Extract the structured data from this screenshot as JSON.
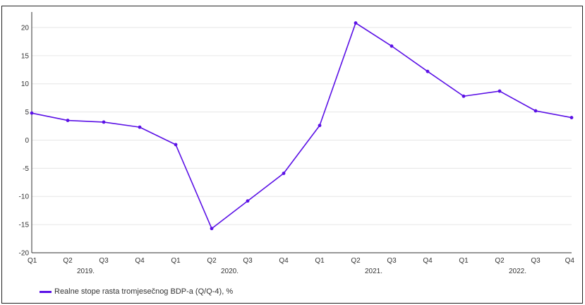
{
  "colors": {
    "series": "#5b11e6",
    "grid": "#e6e6e6",
    "axis": "#333333"
  },
  "chart_data": {
    "type": "line",
    "title": "",
    "xlabel": "",
    "ylabel": "",
    "ylim": [
      -20,
      22
    ],
    "yticks": [
      20,
      15,
      10,
      5,
      0,
      -5,
      -10,
      -15,
      -20
    ],
    "yticks_labels": [
      "20",
      "15",
      "10",
      "5",
      "0",
      "-5",
      "-10",
      "-15",
      "-20"
    ],
    "grid": true,
    "legend_position": "bottom-left",
    "categories": [
      "Q1",
      "Q2",
      "Q3",
      "Q4",
      "Q1",
      "Q2",
      "Q3",
      "Q4",
      "Q1",
      "Q2",
      "Q3",
      "Q4",
      "Q1",
      "Q2",
      "Q3",
      "Q4"
    ],
    "year_labels": [
      "2019.",
      "2020.",
      "2021.",
      "2022."
    ],
    "series": [
      {
        "name": "Realne stope rasta tromjesečnog BDP-a (Q/Q-4), %",
        "values": [
          4.8,
          3.5,
          3.2,
          2.3,
          -0.8,
          -15.7,
          -10.8,
          -5.9,
          2.6,
          20.8,
          16.7,
          12.2,
          7.8,
          8.7,
          5.2,
          4.0
        ]
      }
    ]
  }
}
